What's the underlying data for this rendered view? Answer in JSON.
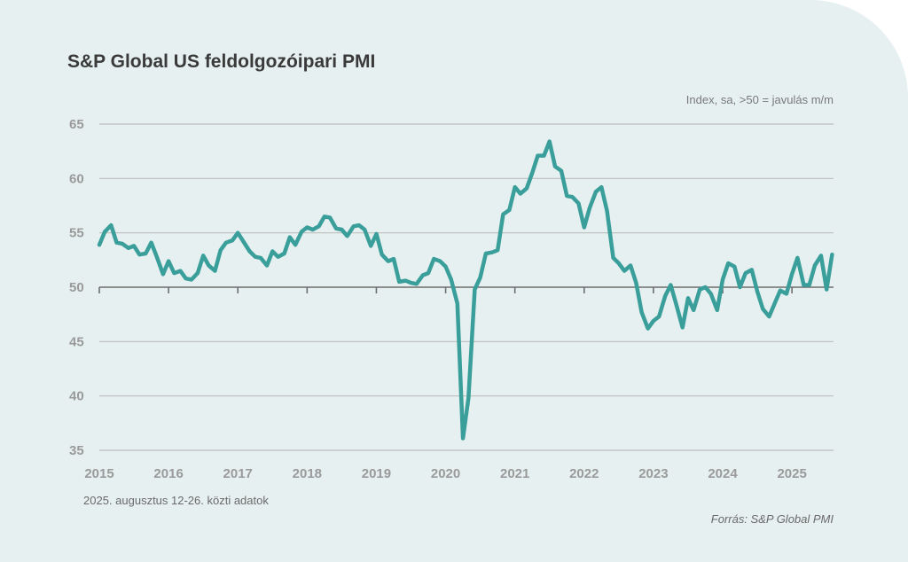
{
  "chart_data": {
    "type": "line",
    "title": "S&P Global US feldolgozóipari PMI",
    "unit_label": "Index, sa, >50 = javulás m/m",
    "note": "2025. augusztus 12-26. közti adatok",
    "source": "Forrás: S&P Global PMI",
    "ylim": [
      35,
      65
    ],
    "yticks": [
      35,
      40,
      45,
      50,
      55,
      60,
      65
    ],
    "xlim": [
      2015.0,
      2025.6
    ],
    "xticks": [
      "2015",
      "2016",
      "2017",
      "2018",
      "2019",
      "2020",
      "2021",
      "2022",
      "2023",
      "2024",
      "2025"
    ],
    "grid": true,
    "reference_line": 50,
    "color": "#3a9e9a",
    "series": [
      {
        "x": [
          2015.0,
          2015.08,
          2015.17,
          2015.25,
          2015.33,
          2015.42,
          2015.5,
          2015.58,
          2015.67,
          2015.75,
          2015.83,
          2015.92,
          2016.0,
          2016.08,
          2016.17,
          2016.25,
          2016.33,
          2016.42,
          2016.5,
          2016.58,
          2016.67,
          2016.75,
          2016.83,
          2016.92,
          2017.0,
          2017.08,
          2017.17,
          2017.25,
          2017.33,
          2017.42,
          2017.5,
          2017.58,
          2017.67,
          2017.75,
          2017.83,
          2017.92,
          2018.0,
          2018.08,
          2018.17,
          2018.25,
          2018.33,
          2018.42,
          2018.5,
          2018.58,
          2018.67,
          2018.75,
          2018.83,
          2018.92,
          2019.0,
          2019.08,
          2019.17,
          2019.25,
          2019.33,
          2019.42,
          2019.5,
          2019.58,
          2019.67,
          2019.75,
          2019.83,
          2019.92,
          2020.0,
          2020.08,
          2020.17,
          2020.25,
          2020.33,
          2020.42,
          2020.5,
          2020.58,
          2020.67,
          2020.75,
          2020.83,
          2020.92,
          2021.0,
          2021.08,
          2021.17,
          2021.25,
          2021.33,
          2021.42,
          2021.5,
          2021.58,
          2021.67,
          2021.75,
          2021.83,
          2021.92,
          2022.0,
          2022.08,
          2022.17,
          2022.25,
          2022.33,
          2022.42,
          2022.5,
          2022.58,
          2022.67,
          2022.75,
          2022.83,
          2022.92,
          2023.0,
          2023.08,
          2023.17,
          2023.25,
          2023.33,
          2023.42,
          2023.5,
          2023.58,
          2023.67,
          2023.75,
          2023.83,
          2023.92,
          2024.0,
          2024.08,
          2024.17,
          2024.25,
          2024.33,
          2024.42,
          2024.5,
          2024.58,
          2024.67,
          2024.75,
          2024.83,
          2024.92,
          2025.0,
          2025.08,
          2025.17,
          2025.25,
          2025.33,
          2025.42,
          2025.5,
          2025.58
        ],
        "values": [
          53.9,
          55.1,
          55.7,
          54.1,
          54.0,
          53.6,
          53.8,
          53.0,
          53.1,
          54.1,
          52.8,
          51.2,
          52.4,
          51.3,
          51.5,
          50.8,
          50.7,
          51.3,
          52.9,
          52.0,
          51.5,
          53.4,
          54.1,
          54.3,
          55.0,
          54.2,
          53.3,
          52.8,
          52.7,
          52.0,
          53.3,
          52.8,
          53.1,
          54.6,
          53.9,
          55.1,
          55.5,
          55.3,
          55.6,
          56.5,
          56.4,
          55.4,
          55.3,
          54.7,
          55.6,
          55.7,
          55.3,
          53.8,
          54.9,
          53.0,
          52.4,
          52.6,
          50.5,
          50.6,
          50.4,
          50.3,
          51.1,
          51.3,
          52.6,
          52.4,
          51.9,
          50.7,
          48.5,
          36.1,
          39.8,
          49.8,
          50.9,
          53.1,
          53.2,
          53.4,
          56.7,
          57.1,
          59.2,
          58.6,
          59.1,
          60.5,
          62.1,
          62.1,
          63.4,
          61.1,
          60.7,
          58.4,
          58.3,
          57.7,
          55.5,
          57.3,
          58.8,
          59.2,
          57.0,
          52.7,
          52.2,
          51.5,
          52.0,
          50.4,
          47.7,
          46.2,
          46.9,
          47.3,
          49.2,
          50.2,
          48.4,
          46.3,
          49.0,
          47.9,
          49.8,
          50.0,
          49.4,
          47.9,
          50.7,
          52.2,
          51.9,
          50.0,
          51.3,
          51.6,
          49.6,
          48.0,
          47.3,
          48.5,
          49.7,
          49.4,
          51.2,
          52.7,
          50.2,
          50.2,
          52.0,
          52.9,
          49.8,
          53.0
        ]
      }
    ]
  }
}
